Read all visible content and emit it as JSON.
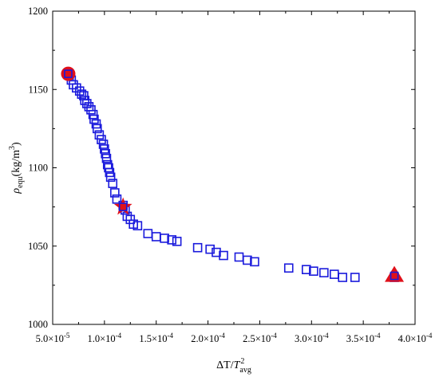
{
  "chart_data": {
    "type": "scatter",
    "title": "",
    "xlabel_parts": {
      "delta": "ΔT",
      "slash": "/",
      "T": "T",
      "sup": "2",
      "sub": "avg"
    },
    "ylabel_parts": {
      "rho": "ρ",
      "sub": "equ",
      "unit_open": "(kg/m",
      "unit_sup": "3",
      "unit_close": ")"
    },
    "xlim": [
      5e-05,
      0.0004
    ],
    "ylim": [
      1000,
      1200
    ],
    "x_ticks": [
      5e-05,
      0.0001,
      0.00015,
      0.0002,
      0.00025,
      0.0003,
      0.00035,
      0.0004
    ],
    "x_tick_labels": [
      {
        "mant": "5.0×10",
        "exp": "-5"
      },
      {
        "mant": "1.0×10",
        "exp": "-4"
      },
      {
        "mant": "1.5×10",
        "exp": "-4"
      },
      {
        "mant": "2.0×10",
        "exp": "-4"
      },
      {
        "mant": "2.5×10",
        "exp": "-4"
      },
      {
        "mant": "3.0×10",
        "exp": "-4"
      },
      {
        "mant": "3.5×10",
        "exp": "-4"
      },
      {
        "mant": "4.0×10",
        "exp": "-4"
      }
    ],
    "y_ticks": [
      1000,
      1050,
      1100,
      1150,
      1200
    ],
    "y_tick_labels": [
      "1000",
      "1050",
      "1100",
      "1150",
      "1200"
    ],
    "colors": {
      "square": "#1a1adc",
      "highlight": "#e0101a"
    },
    "series": [
      {
        "marker": "square",
        "points": [
          [
            6.6e-05,
            1159
          ],
          [
            6.8e-05,
            1156
          ],
          [
            7e-05,
            1153
          ],
          [
            7.3e-05,
            1151
          ],
          [
            7.6e-05,
            1149
          ],
          [
            7.8e-05,
            1147
          ],
          [
            8e-05,
            1146
          ],
          [
            8.1e-05,
            1143
          ],
          [
            8.3e-05,
            1141
          ],
          [
            8.5e-05,
            1139
          ],
          [
            8.7e-05,
            1137
          ],
          [
            8.9e-05,
            1134
          ],
          [
            9e-05,
            1131
          ],
          [
            9.2e-05,
            1128
          ],
          [
            9.3e-05,
            1125
          ],
          [
            9.5e-05,
            1121
          ],
          [
            9.7e-05,
            1118
          ],
          [
            9.9e-05,
            1115
          ],
          [
            0.0001,
            1112
          ],
          [
            0.000101,
            1109
          ],
          [
            0.000102,
            1106
          ],
          [
            0.000103,
            1102
          ],
          [
            0.000104,
            1100
          ],
          [
            0.000105,
            1097
          ],
          [
            0.000106,
            1094
          ],
          [
            0.000108,
            1090
          ],
          [
            0.00011,
            1084
          ],
          [
            0.000112,
            1080
          ],
          [
            0.000118,
            1076
          ],
          [
            0.00012,
            1073
          ],
          [
            0.000122,
            1069
          ],
          [
            0.000125,
            1067
          ],
          [
            0.000128,
            1064
          ],
          [
            0.000132,
            1063
          ],
          [
            0.000142,
            1058
          ],
          [
            0.00015,
            1056
          ],
          [
            0.000158,
            1055
          ],
          [
            0.000165,
            1054
          ],
          [
            0.00017,
            1053
          ],
          [
            0.00019,
            1049
          ],
          [
            0.000202,
            1048
          ],
          [
            0.000208,
            1046
          ],
          [
            0.000215,
            1044
          ],
          [
            0.00023,
            1043
          ],
          [
            0.000238,
            1041
          ],
          [
            0.000245,
            1040
          ],
          [
            0.000278,
            1036
          ],
          [
            0.000295,
            1035
          ],
          [
            0.000302,
            1034
          ],
          [
            0.000312,
            1033
          ],
          [
            0.000322,
            1032
          ],
          [
            0.00033,
            1030
          ],
          [
            0.000342,
            1030
          ],
          [
            0.00038,
            1030
          ]
        ]
      },
      {
        "marker": "circle",
        "points": [
          [
            6.5e-05,
            1160
          ]
        ]
      },
      {
        "marker": "star",
        "points": [
          [
            0.000118,
            1075
          ]
        ]
      },
      {
        "marker": "triangle",
        "points": [
          [
            0.00038,
            1031
          ]
        ]
      }
    ]
  }
}
